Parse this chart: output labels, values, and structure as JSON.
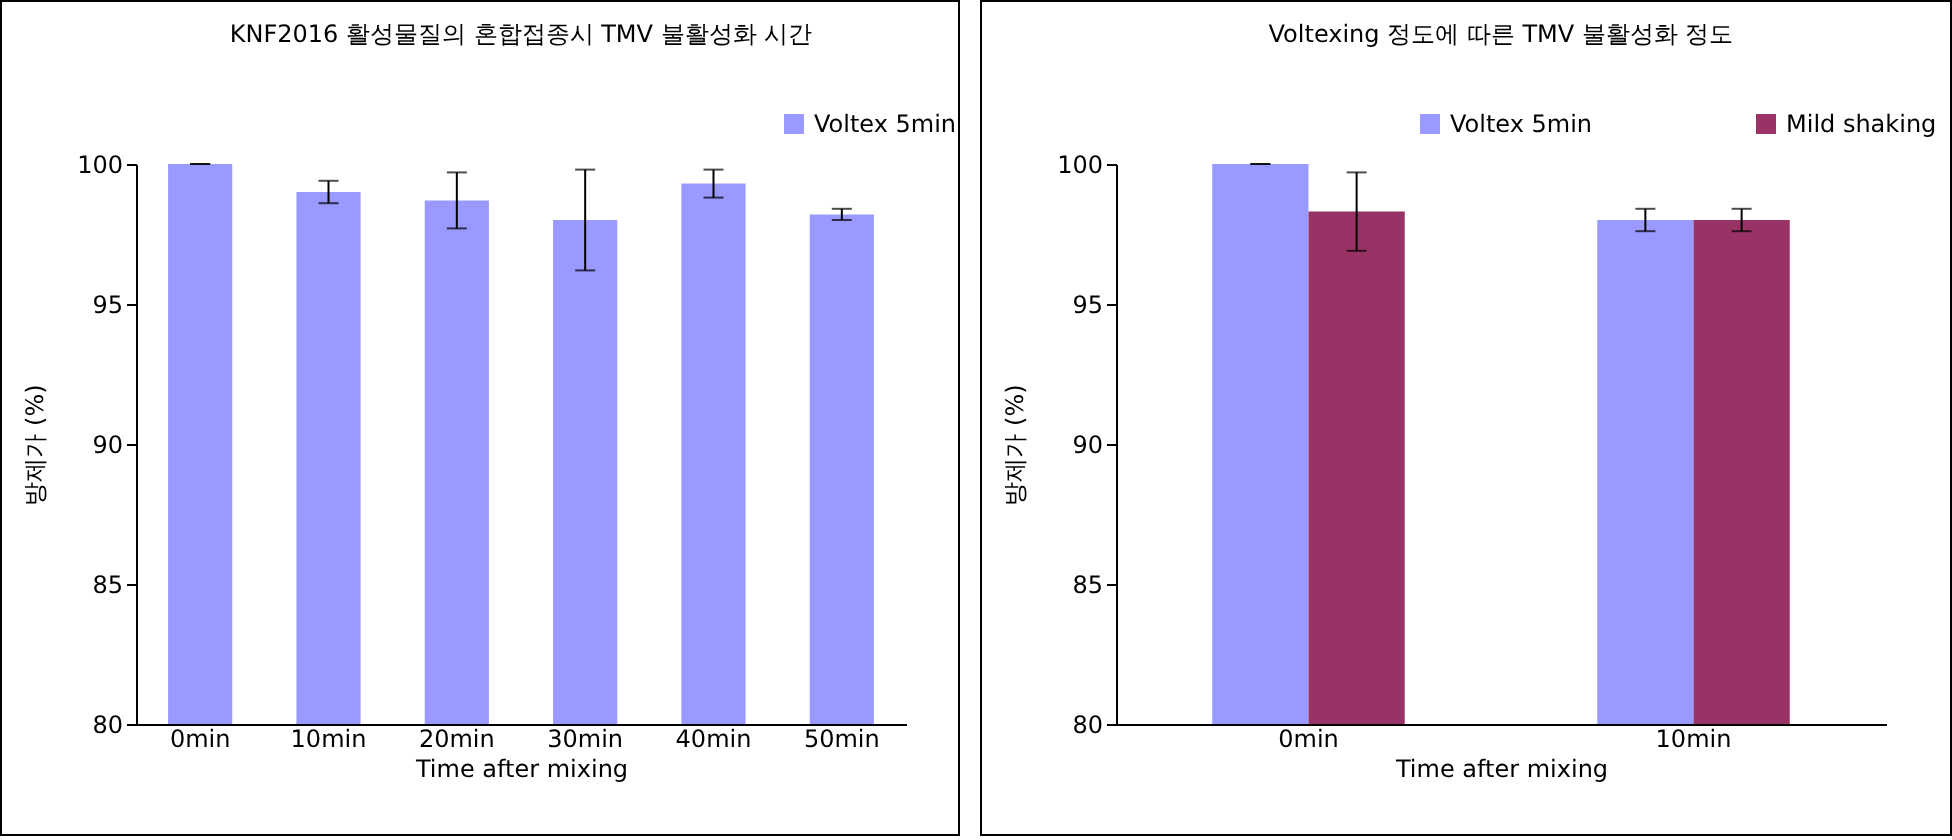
{
  "chart_data": [
    {
      "type": "bar",
      "title": "KNF2016 활성물질의 혼합접종시 TMV 불활성화 시간",
      "xlabel": "Time after mixing",
      "ylabel": "방제가 (%)",
      "categories": [
        "0min",
        "10min",
        "20min",
        "30min",
        "40min",
        "50min"
      ],
      "series": [
        {
          "name": "Voltex 5min",
          "color": "#9999ff",
          "values": [
            100,
            99.0,
            98.7,
            98.0,
            99.3,
            98.2
          ],
          "errors": [
            0,
            0.4,
            1.0,
            1.8,
            0.5,
            0.2
          ]
        }
      ],
      "ylim": [
        80,
        100
      ],
      "yticks": [
        80,
        85,
        90,
        95,
        100
      ],
      "grid": false,
      "legend": "top right"
    },
    {
      "type": "bar",
      "title": "Voltexing 정도에 따른 TMV 불활성화 정도",
      "xlabel": "Time after mixing",
      "ylabel": "방제가 (%)",
      "categories": [
        "0min",
        "10min"
      ],
      "series": [
        {
          "name": "Voltex 5min",
          "color": "#9999ff",
          "values": [
            100,
            98.0
          ],
          "errors": [
            0,
            0.4
          ]
        },
        {
          "name": "Mild shaking",
          "color": "#993366",
          "values": [
            98.3,
            98.0
          ],
          "errors": [
            1.4,
            0.4
          ]
        }
      ],
      "ylim": [
        80,
        100
      ],
      "yticks": [
        80,
        85,
        90,
        95,
        100
      ],
      "grid": false,
      "legend": "top right"
    }
  ]
}
